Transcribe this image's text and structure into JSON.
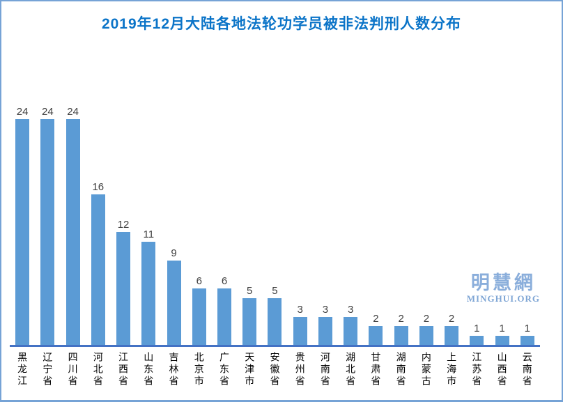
{
  "title": "2019年12月大陆各地法轮功学员被非法判刑人数分布",
  "watermark": {
    "logo": "明慧網",
    "url_text": "MINGHUI.ORG"
  },
  "colors": {
    "bar": "#5B9BD5",
    "axis_line": "#4472C4",
    "title": "#0B74C8",
    "page_border": "#76A3D6",
    "value_label": "#404040",
    "category_label": "#000000",
    "watermark": "#8AAEDB"
  },
  "chart_data": {
    "type": "bar",
    "title": "2019年12月大陆各地法轮功学员被非法判刑人数分布",
    "categories": [
      "黑龙江",
      "辽宁省",
      "四川省",
      "河北省",
      "江西省",
      "山东省",
      "吉林省",
      "北京市",
      "广东省",
      "天津市",
      "安徽省",
      "贵州省",
      "河南省",
      "湖北省",
      "甘肃省",
      "湖南省",
      "内蒙古",
      "上海市",
      "江苏省",
      "山西省",
      "云南省"
    ],
    "values": [
      24,
      24,
      24,
      16,
      12,
      11,
      9,
      6,
      6,
      5,
      5,
      3,
      3,
      3,
      2,
      2,
      2,
      2,
      1,
      1,
      1
    ],
    "xlabel": "",
    "ylabel": "",
    "ylim": [
      0,
      26
    ],
    "grid": false,
    "legend": false,
    "data_labels": true,
    "category_label_orientation": "vertical"
  }
}
